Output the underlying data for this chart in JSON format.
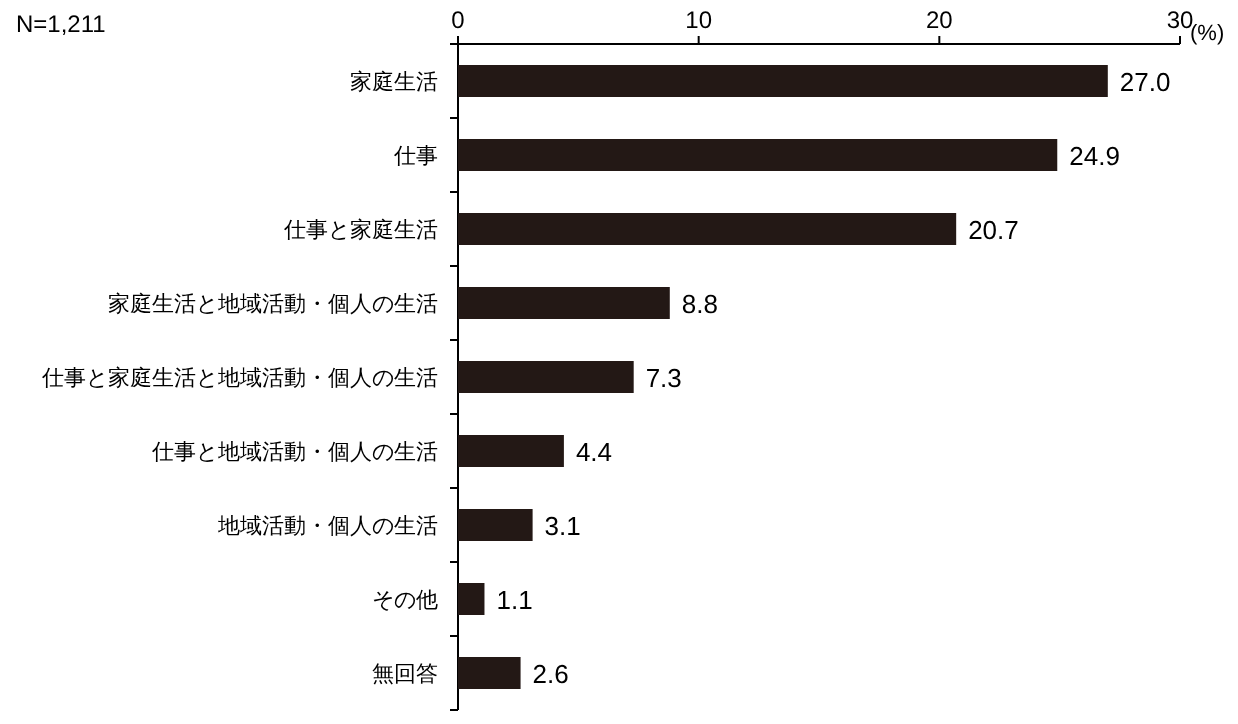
{
  "chart_data": {
    "type": "bar",
    "orientation": "horizontal",
    "xlabel": "(%)",
    "annotations": [
      "N=1,211"
    ],
    "categories": [
      "家庭生活",
      "仕事",
      "仕事と家庭生活",
      "家庭生活と地域活動・個人の生活",
      "仕事と家庭生活と地域活動・個人の生活",
      "仕事と地域活動・個人の生活",
      "地域活動・個人の生活",
      "その他",
      "無回答"
    ],
    "values": [
      27.0,
      24.9,
      20.7,
      8.8,
      7.3,
      4.4,
      3.1,
      1.1,
      2.6
    ],
    "value_labels": [
      "27.0",
      "24.9",
      "20.7",
      "8.8",
      "7.3",
      "4.4",
      "3.1",
      "1.1",
      "2.6"
    ],
    "color": "#231815",
    "xlim": [
      0,
      30
    ],
    "xticks": [
      0,
      10,
      20,
      30
    ]
  }
}
